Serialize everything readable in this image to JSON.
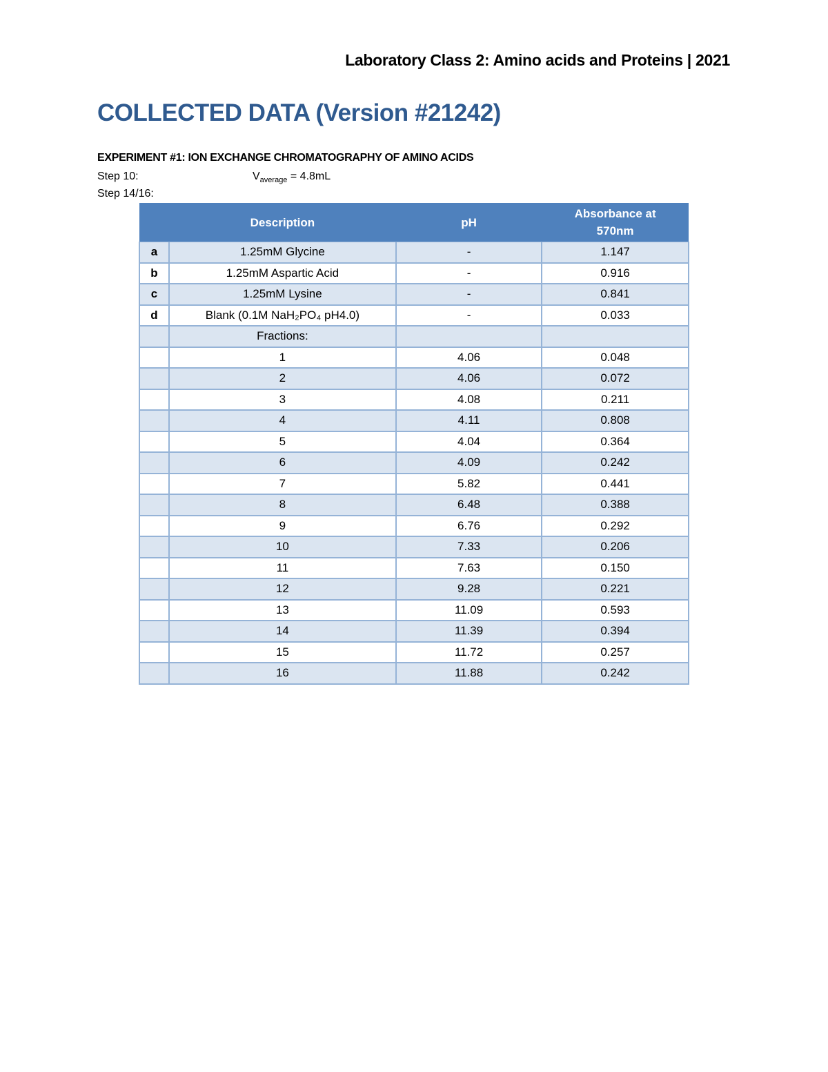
{
  "page_header": "Laboratory Class 2: Amino acids and Proteins | 2021",
  "title": "COLLECTED DATA (Version #21242)",
  "experiment_heading": "EXPERIMENT #1: ION EXCHANGE CHROMATOGRAPHY OF AMINO ACIDS",
  "step10_label": "Step 10:",
  "v_symbol": "V",
  "v_sub": "average",
  "v_value": " = 4.8mL",
  "step14_label": "Step 14/16:",
  "table": {
    "headers": [
      "",
      "Description",
      "pH",
      "Absorbance at 570nm"
    ],
    "rows": [
      [
        "a",
        "1.25mM Glycine",
        "-",
        "1.147"
      ],
      [
        "b",
        "1.25mM Aspartic Acid",
        "-",
        "0.916"
      ],
      [
        "c",
        "1.25mM Lysine",
        "-",
        "0.841"
      ],
      [
        "d",
        "Blank (0.1M NaH₂PO₄ pH4.0)",
        "-",
        "0.033"
      ],
      [
        "",
        "Fractions:",
        "",
        ""
      ],
      [
        "",
        "1",
        "4.06",
        "0.048"
      ],
      [
        "",
        "2",
        "4.06",
        "0.072"
      ],
      [
        "",
        "3",
        "4.08",
        "0.211"
      ],
      [
        "",
        "4",
        "4.11",
        "0.808"
      ],
      [
        "",
        "5",
        "4.04",
        "0.364"
      ],
      [
        "",
        "6",
        "4.09",
        "0.242"
      ],
      [
        "",
        "7",
        "5.82",
        "0.441"
      ],
      [
        "",
        "8",
        "6.48",
        "0.388"
      ],
      [
        "",
        "9",
        "6.76",
        "0.292"
      ],
      [
        "",
        "10",
        "7.33",
        "0.206"
      ],
      [
        "",
        "11",
        "7.63",
        "0.150"
      ],
      [
        "",
        "12",
        "9.28",
        "0.221"
      ],
      [
        "",
        "13",
        "11.09",
        "0.593"
      ],
      [
        "",
        "14",
        "11.39",
        "0.394"
      ],
      [
        "",
        "15",
        "11.72",
        "0.257"
      ],
      [
        "",
        "16",
        "11.88",
        "0.242"
      ]
    ]
  },
  "colors": {
    "title": "#2f5a8f",
    "table_header": "#4f81bd",
    "row_stripe": "#dbe5f1",
    "border": "#95b3d7"
  }
}
